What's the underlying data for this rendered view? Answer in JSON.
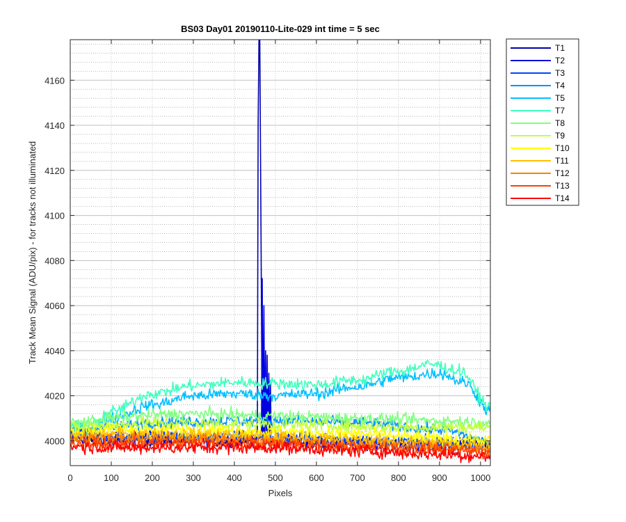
{
  "chart_data": {
    "type": "line",
    "title": "BS03 Day01 20190110-Lite-029 int time = 5 sec",
    "xlabel": "Pixels",
    "ylabel": "Track Mean Signal (ADU/pix) - for tracks not illuminated",
    "xlim": [
      0,
      1024
    ],
    "ylim": [
      3989,
      4178
    ],
    "xticks": [
      0,
      100,
      200,
      300,
      400,
      500,
      600,
      700,
      800,
      900,
      1000
    ],
    "yticks": [
      4000,
      4020,
      4040,
      4060,
      4080,
      4100,
      4120,
      4140,
      4160
    ],
    "yminor_step": 4,
    "xminor_step": 100,
    "grid": true,
    "minor_grid": true,
    "legend_position": "outside-top-right",
    "series": [
      {
        "name": "T1",
        "color": "#0000AA",
        "noise": 1.2,
        "profile": [
          [
            0,
            4001
          ],
          [
            100,
            4000
          ],
          [
            300,
            3999.5
          ],
          [
            500,
            3999.5
          ],
          [
            700,
            3999
          ],
          [
            1024,
            3998.5
          ]
        ],
        "spikes": [
          [
            458,
            4140
          ],
          [
            460,
            4178
          ],
          [
            462,
            4178
          ],
          [
            464,
            4120
          ],
          [
            466,
            4060
          ],
          [
            470,
            4040
          ]
        ]
      },
      {
        "name": "T2",
        "color": "#0000E0",
        "noise": 1.6,
        "profile": [
          [
            0,
            4003
          ],
          [
            100,
            4001
          ],
          [
            300,
            4001
          ],
          [
            450,
            4000.5
          ],
          [
            700,
            3998.5
          ],
          [
            1024,
            3998
          ]
        ],
        "spikes": [
          [
            468,
            4072
          ],
          [
            472,
            4060
          ],
          [
            476,
            4040
          ],
          [
            480,
            4038
          ],
          [
            484,
            4030
          ],
          [
            488,
            4025
          ]
        ]
      },
      {
        "name": "T3",
        "color": "#0044FF",
        "noise": 1.4,
        "profile": [
          [
            0,
            4004
          ],
          [
            100,
            4002
          ],
          [
            200,
            4002
          ],
          [
            400,
            4002
          ],
          [
            600,
            4001
          ],
          [
            800,
            3999.5
          ],
          [
            1024,
            3998
          ]
        ],
        "spikes": []
      },
      {
        "name": "T4",
        "color": "#0090FF",
        "noise": 1.3,
        "profile": [
          [
            0,
            4005
          ],
          [
            100,
            4006
          ],
          [
            200,
            4008
          ],
          [
            300,
            4008.5
          ],
          [
            500,
            4009
          ],
          [
            700,
            4008
          ],
          [
            900,
            4005
          ],
          [
            1024,
            4000
          ]
        ],
        "spikes": []
      },
      {
        "name": "T5",
        "color": "#00C0FF",
        "noise": 1.3,
        "profile": [
          [
            0,
            4005
          ],
          [
            50,
            4006
          ],
          [
            100,
            4010
          ],
          [
            200,
            4016
          ],
          [
            300,
            4020
          ],
          [
            400,
            4021
          ],
          [
            500,
            4020
          ],
          [
            600,
            4021
          ],
          [
            700,
            4024
          ],
          [
            800,
            4028
          ],
          [
            900,
            4030
          ],
          [
            960,
            4026
          ],
          [
            1024,
            4013
          ]
        ],
        "spikes": []
      },
      {
        "name": "T7",
        "color": "#40FFC0",
        "noise": 1.3,
        "profile": [
          [
            0,
            4007
          ],
          [
            50,
            4007
          ],
          [
            100,
            4013
          ],
          [
            200,
            4021
          ],
          [
            300,
            4024.5
          ],
          [
            400,
            4026
          ],
          [
            500,
            4025.5
          ],
          [
            600,
            4025
          ],
          [
            700,
            4027
          ],
          [
            800,
            4031
          ],
          [
            880,
            4034
          ],
          [
            950,
            4031
          ],
          [
            1024,
            4015
          ]
        ],
        "spikes": []
      },
      {
        "name": "T8",
        "color": "#80FF80",
        "noise": 1.3,
        "profile": [
          [
            0,
            4008
          ],
          [
            100,
            4010
          ],
          [
            200,
            4011.5
          ],
          [
            300,
            4012
          ],
          [
            500,
            4011
          ],
          [
            700,
            4010
          ],
          [
            900,
            4009
          ],
          [
            1024,
            4008
          ]
        ],
        "spikes": []
      },
      {
        "name": "T9",
        "color": "#C0FF40",
        "noise": 1.4,
        "profile": [
          [
            0,
            4006
          ],
          [
            100,
            4007
          ],
          [
            200,
            4008
          ],
          [
            400,
            4007.5
          ],
          [
            600,
            4007
          ],
          [
            800,
            4006
          ],
          [
            1024,
            4006
          ]
        ],
        "spikes": []
      },
      {
        "name": "T10",
        "color": "#FFFF00",
        "noise": 1.4,
        "profile": [
          [
            0,
            4004
          ],
          [
            100,
            4005
          ],
          [
            300,
            4005
          ],
          [
            500,
            4004
          ],
          [
            700,
            4003
          ],
          [
            900,
            4001
          ],
          [
            1024,
            4000
          ]
        ],
        "spikes": []
      },
      {
        "name": "T11",
        "color": "#FFC000",
        "noise": 1.4,
        "profile": [
          [
            0,
            4002
          ],
          [
            100,
            4003
          ],
          [
            300,
            4003
          ],
          [
            500,
            4002
          ],
          [
            700,
            4000.5
          ],
          [
            900,
            3999
          ],
          [
            1024,
            3998
          ]
        ],
        "spikes": []
      },
      {
        "name": "T12",
        "color": "#FF8000",
        "noise": 1.4,
        "profile": [
          [
            0,
            4001
          ],
          [
            100,
            4001
          ],
          [
            300,
            4001
          ],
          [
            500,
            4000
          ],
          [
            700,
            3998.5
          ],
          [
            900,
            3997
          ],
          [
            1024,
            3996
          ]
        ],
        "spikes": []
      },
      {
        "name": "T13",
        "color": "#FF4000",
        "noise": 1.4,
        "profile": [
          [
            0,
            3999
          ],
          [
            100,
            3998.5
          ],
          [
            300,
            3999
          ],
          [
            500,
            3998.5
          ],
          [
            700,
            3997
          ],
          [
            900,
            3996
          ],
          [
            1024,
            3995
          ]
        ],
        "spikes": []
      },
      {
        "name": "T14",
        "color": "#FF0000",
        "noise": 1.4,
        "profile": [
          [
            0,
            3997.5
          ],
          [
            100,
            3997
          ],
          [
            300,
            3997
          ],
          [
            500,
            3997
          ],
          [
            700,
            3995.5
          ],
          [
            900,
            3994
          ],
          [
            1024,
            3993
          ]
        ],
        "spikes": []
      }
    ]
  }
}
